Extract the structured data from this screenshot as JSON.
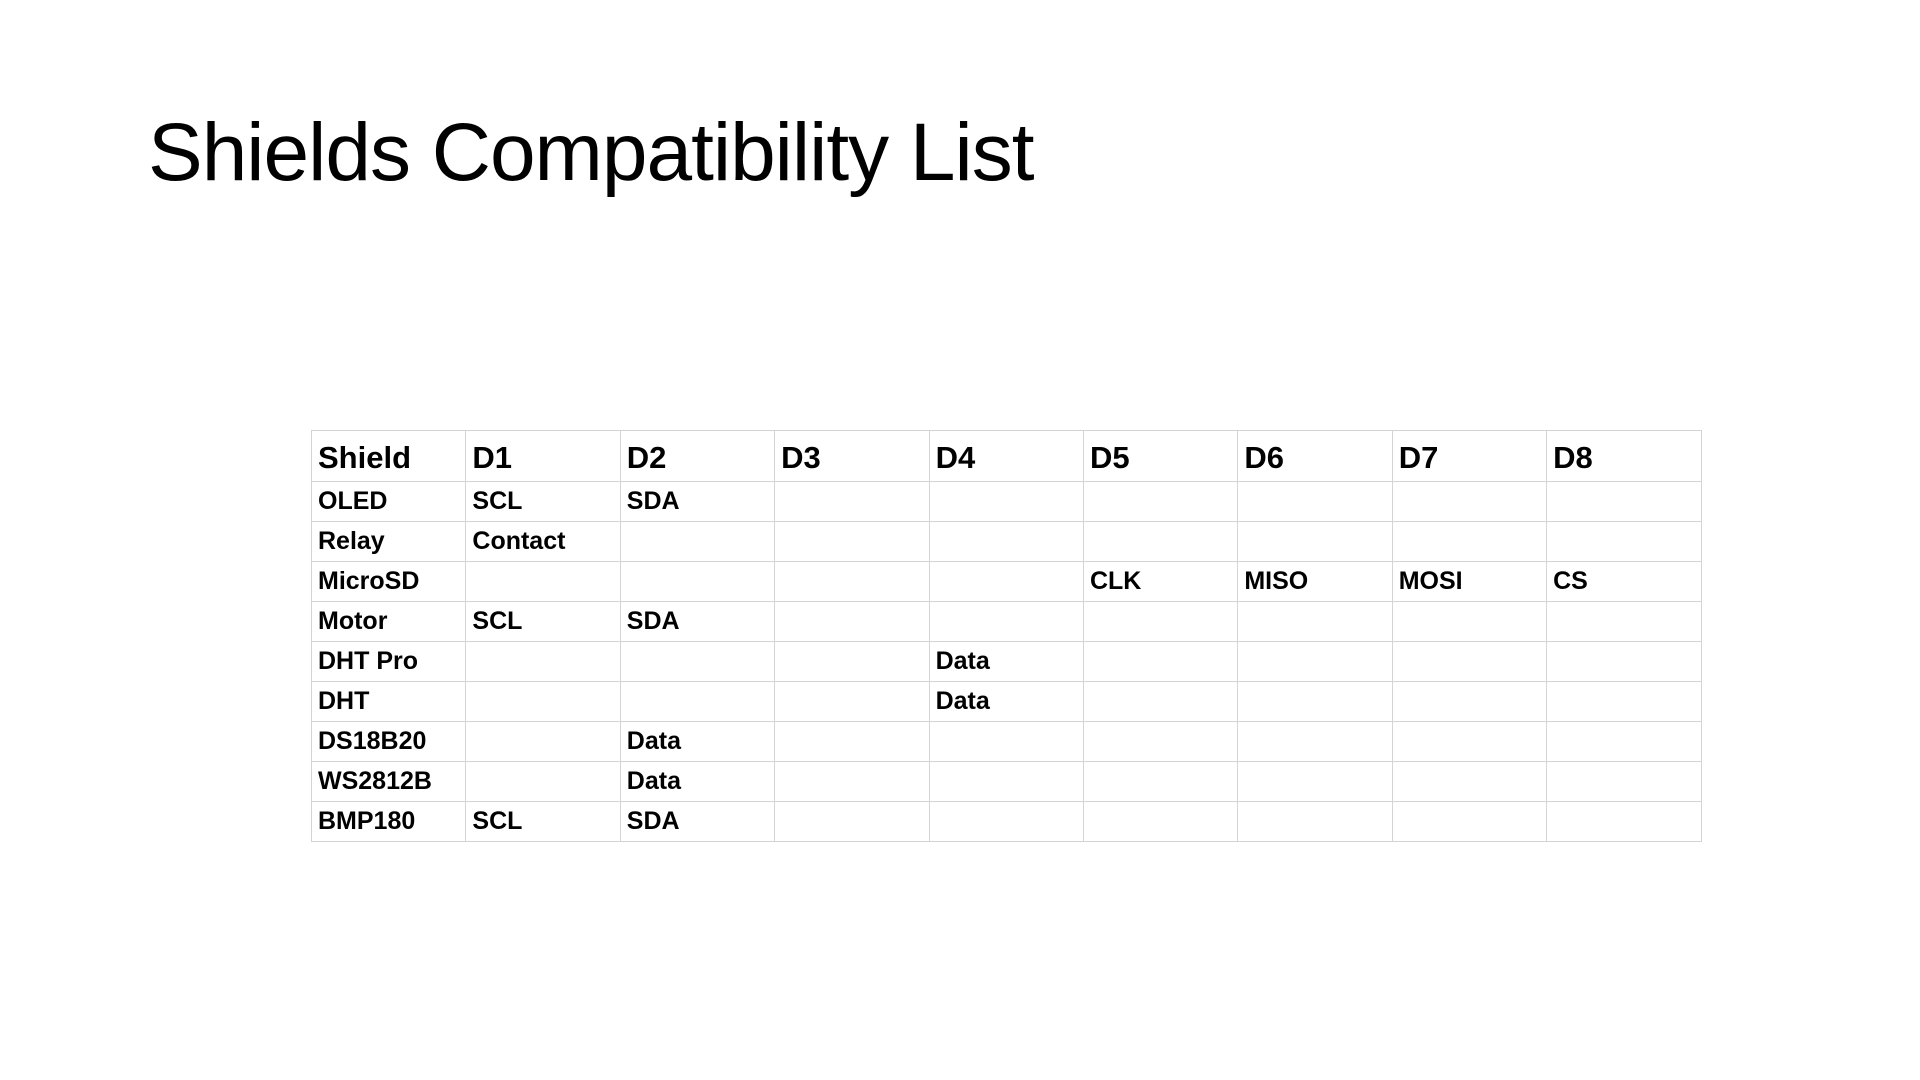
{
  "slide": {
    "title": "Shields Compatibility List"
  },
  "table": {
    "headers": [
      "Shield",
      "D1",
      "D2",
      "D3",
      "D4",
      "D5",
      "D6",
      "D7",
      "D8"
    ],
    "rows": [
      [
        "OLED",
        "SCL",
        "SDA",
        "",
        "",
        "",
        "",
        "",
        ""
      ],
      [
        "Relay",
        "Contact",
        "",
        "",
        "",
        "",
        "",
        "",
        ""
      ],
      [
        "MicroSD",
        "",
        "",
        "",
        "",
        "CLK",
        "MISO",
        "MOSI",
        "CS"
      ],
      [
        "Motor",
        "SCL",
        "SDA",
        "",
        "",
        "",
        "",
        "",
        ""
      ],
      [
        "DHT Pro",
        "",
        "",
        "",
        "Data",
        "",
        "",
        "",
        ""
      ],
      [
        "DHT",
        "",
        "",
        "",
        "Data",
        "",
        "",
        "",
        ""
      ],
      [
        "DS18B20",
        "",
        "Data",
        "",
        "",
        "",
        "",
        "",
        ""
      ],
      [
        "WS2812B",
        "",
        "Data",
        "",
        "",
        "",
        "",
        "",
        ""
      ],
      [
        "BMP180",
        "SCL",
        "SDA",
        "",
        "",
        "",
        "",
        "",
        ""
      ]
    ]
  }
}
